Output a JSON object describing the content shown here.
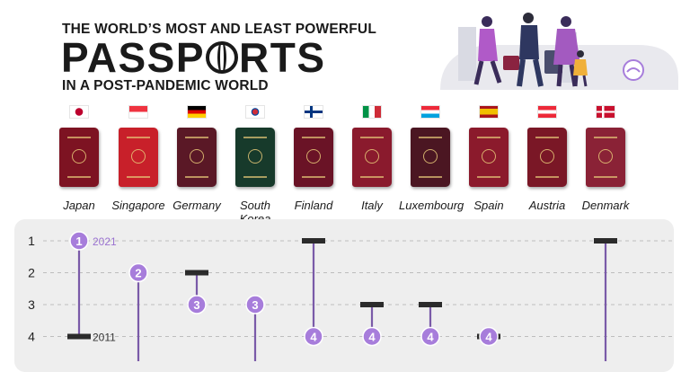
{
  "header": {
    "line1": "THE WORLD’S MOST AND LEAST POWERFUL",
    "line2_pre": "PASSP",
    "line2_post": "RTS",
    "line3": "IN A POST-PANDEMIC WORLD"
  },
  "countries": [
    {
      "name": "Japan",
      "flag": "japan-flag-icon",
      "passport_color": "#7d1322"
    },
    {
      "name": "Singapore",
      "flag": "singapore-flag-icon",
      "passport_color": "#c8202a"
    },
    {
      "name": "Germany",
      "flag": "germany-flag-icon",
      "passport_color": "#5a1826"
    },
    {
      "name": "South Korea",
      "flag": "south-korea-flag-icon",
      "passport_color": "#173a2b"
    },
    {
      "name": "Finland",
      "flag": "finland-flag-icon",
      "passport_color": "#6a1326"
    },
    {
      "name": "Italy",
      "flag": "italy-flag-icon",
      "passport_color": "#8a1a2d"
    },
    {
      "name": "Luxembourg",
      "flag": "luxembourg-flag-icon",
      "passport_color": "#4b1622"
    },
    {
      "name": "Spain",
      "flag": "spain-flag-icon",
      "passport_color": "#8b1a2c"
    },
    {
      "name": "Austria",
      "flag": "austria-flag-icon",
      "passport_color": "#7a1726"
    },
    {
      "name": "Denmark",
      "flag": "denmark-flag-icon",
      "passport_color": "#8a2236"
    }
  ],
  "chart_data": {
    "type": "dumbbell",
    "y_axis": "rank",
    "y_ticks": [
      "1",
      "2",
      "3",
      "4"
    ],
    "y_reversed": true,
    "grid": "dashed horizontal",
    "legend": [
      {
        "label": "2021",
        "marker": "circle",
        "anchor_rank": 1
      },
      {
        "label": "2011",
        "marker": "bar",
        "anchor_rank": 4
      }
    ],
    "marker_color": "#a77ddb",
    "line_color": "#7a5aa8",
    "rank_2021": [
      1,
      2,
      3,
      3,
      4,
      4,
      4,
      4,
      null,
      null
    ],
    "rank_2011": [
      4,
      null,
      2,
      null,
      1,
      3,
      3,
      4,
      null,
      1
    ]
  }
}
